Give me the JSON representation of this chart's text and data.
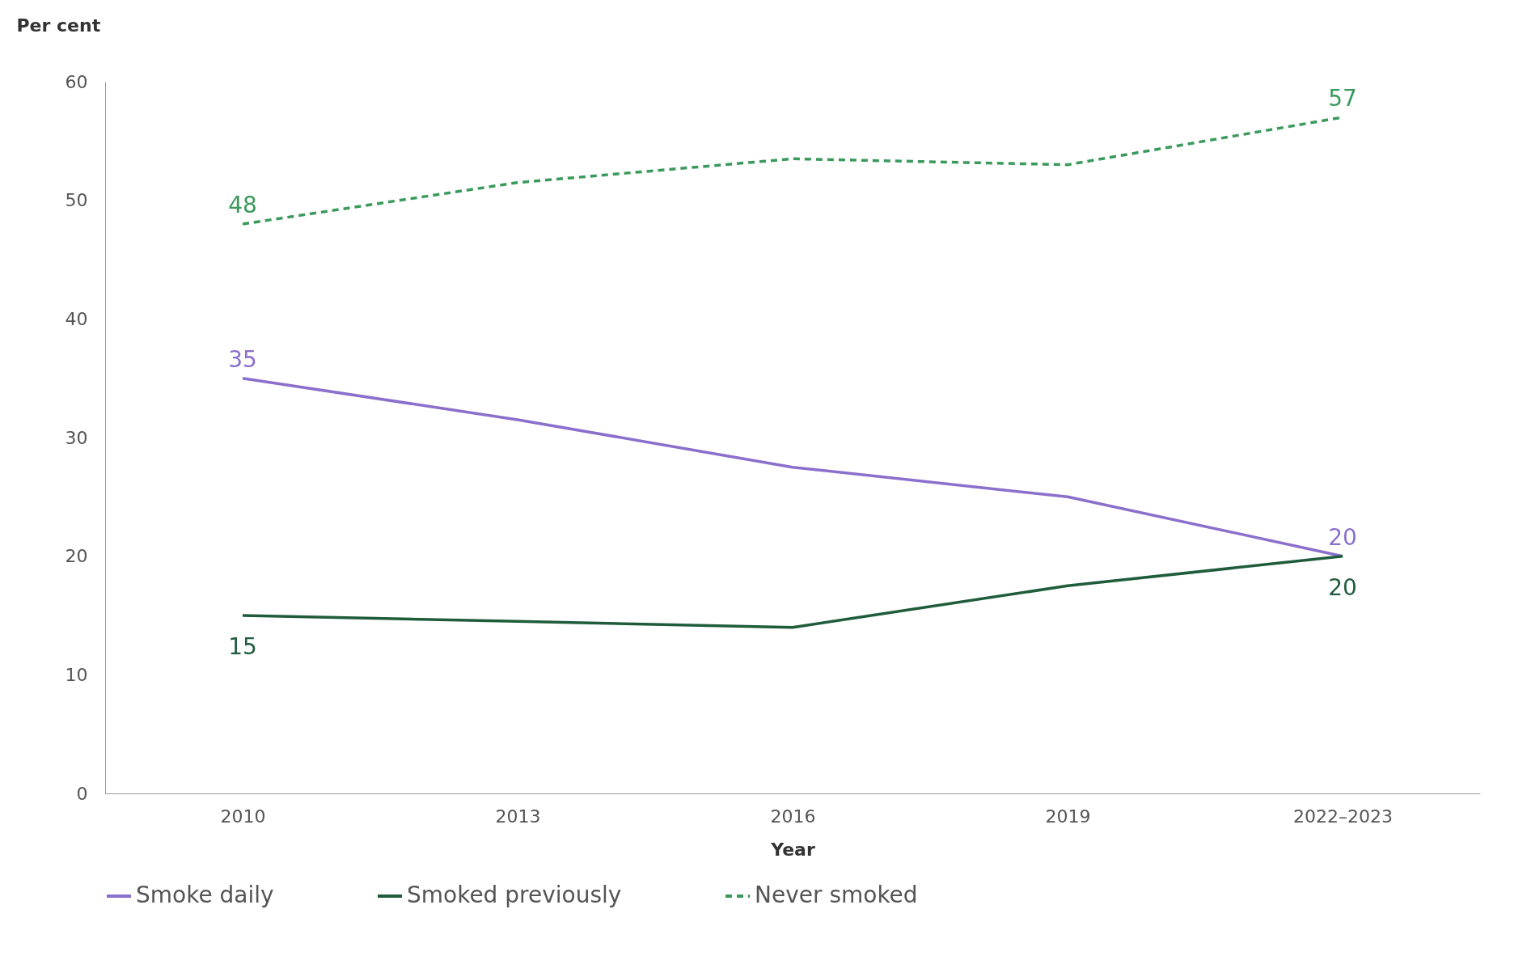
{
  "chart_data": {
    "type": "line",
    "ylabel": "Per cent",
    "xlabel": "Year",
    "categories": [
      "2010",
      "2013",
      "2016",
      "2019",
      "2022–2023"
    ],
    "ylim": [
      0,
      60
    ],
    "yticks": [
      0,
      10,
      20,
      30,
      40,
      50,
      60
    ],
    "grid": false,
    "legend": "bottom",
    "marker": "none",
    "series": [
      {
        "name": "Smoke daily",
        "color": "#8a6fcc",
        "line_style": "solid",
        "values": [
          35,
          31.5,
          27.5,
          25,
          20
        ],
        "value_labels": [
          "35",
          null,
          null,
          null,
          "20"
        ]
      },
      {
        "name": "Smoked previously",
        "color": "#1f5c3c",
        "line_style": "solid",
        "values": [
          15,
          14.5,
          14,
          17.5,
          20
        ],
        "value_labels": [
          "15",
          null,
          null,
          null,
          "20"
        ]
      },
      {
        "name": "Never smoked",
        "color": "#3a9a5c",
        "line_style": "dashed",
        "values": [
          48,
          51.5,
          53.5,
          53,
          57
        ],
        "value_labels": [
          "48",
          null,
          null,
          null,
          "57"
        ]
      }
    ]
  }
}
